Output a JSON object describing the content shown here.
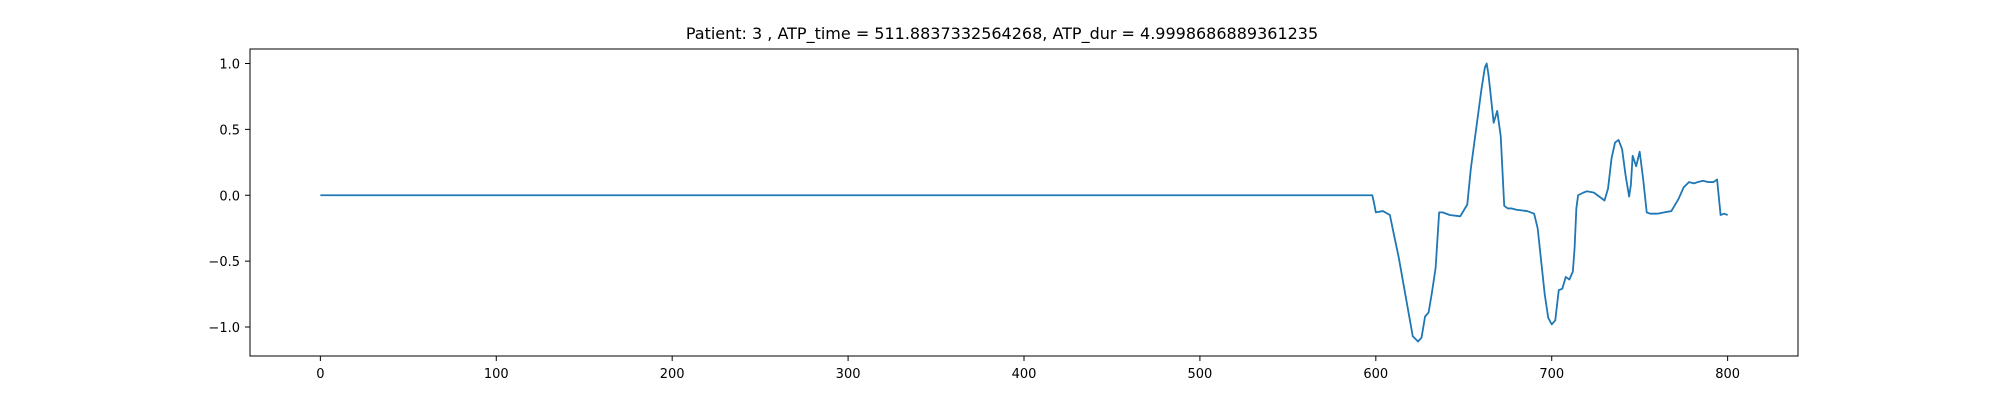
{
  "chart_data": {
    "type": "line",
    "title": "Patient: 3 , ATP_time = 511.8837332564268, ATP_dur = 4.9998686889361235",
    "xlabel": "",
    "ylabel": "",
    "xlim": [
      -40,
      840
    ],
    "ylim": [
      -1.22,
      1.11
    ],
    "xticks": [
      0,
      100,
      200,
      300,
      400,
      500,
      600,
      700,
      800
    ],
    "xtick_labels": [
      "0",
      "100",
      "200",
      "300",
      "400",
      "500",
      "600",
      "700",
      "800"
    ],
    "yticks": [
      1.0,
      0.5,
      0.0,
      -0.5,
      -1.0
    ],
    "ytick_labels": [
      "1.0",
      "0.5",
      "0.0",
      "−0.5",
      "−1.0"
    ],
    "grid": false,
    "series": [
      {
        "color": "#1f77b4",
        "x": [
          0,
          100,
          200,
          300,
          400,
          500,
          598,
          599,
          600,
          604,
          608,
          610,
          613,
          617,
          621,
          624,
          626,
          628,
          630,
          632,
          634,
          636,
          638,
          642,
          648,
          652,
          654,
          656,
          658,
          660,
          662,
          663,
          664,
          665,
          667,
          669,
          671,
          673,
          675,
          677,
          680,
          686,
          690,
          692,
          694,
          696,
          698,
          700,
          702,
          704,
          706,
          708,
          710,
          712,
          713,
          714,
          715,
          718,
          720,
          724,
          728,
          730,
          732,
          734,
          736,
          738,
          740,
          742,
          744,
          745,
          746,
          748,
          750,
          752,
          754,
          756,
          760,
          764,
          768,
          772,
          775,
          778,
          781,
          783,
          786,
          789,
          792,
          794,
          796,
          798,
          800
        ],
        "y": [
          0,
          0,
          0,
          0,
          0,
          0,
          0,
          -0.06,
          -0.13,
          -0.12,
          -0.15,
          -0.28,
          -0.47,
          -0.77,
          -1.07,
          -1.11,
          -1.08,
          -0.92,
          -0.89,
          -0.73,
          -0.55,
          -0.13,
          -0.13,
          -0.15,
          -0.16,
          -0.07,
          0.2,
          0.4,
          0.6,
          0.8,
          0.97,
          1.0,
          0.92,
          0.8,
          0.55,
          0.64,
          0.45,
          -0.08,
          -0.1,
          -0.1,
          -0.11,
          -0.12,
          -0.14,
          -0.25,
          -0.5,
          -0.75,
          -0.93,
          -0.98,
          -0.95,
          -0.72,
          -0.71,
          -0.62,
          -0.64,
          -0.58,
          -0.4,
          -0.1,
          0.0,
          0.02,
          0.03,
          0.02,
          -0.02,
          -0.04,
          0.05,
          0.28,
          0.4,
          0.42,
          0.35,
          0.15,
          -0.01,
          0.08,
          0.3,
          0.22,
          0.33,
          0.12,
          -0.13,
          -0.14,
          -0.14,
          -0.13,
          -0.12,
          -0.03,
          0.06,
          0.1,
          0.09,
          0.1,
          0.11,
          0.1,
          0.1,
          0.12,
          -0.15,
          -0.14,
          -0.15
        ]
      }
    ]
  }
}
